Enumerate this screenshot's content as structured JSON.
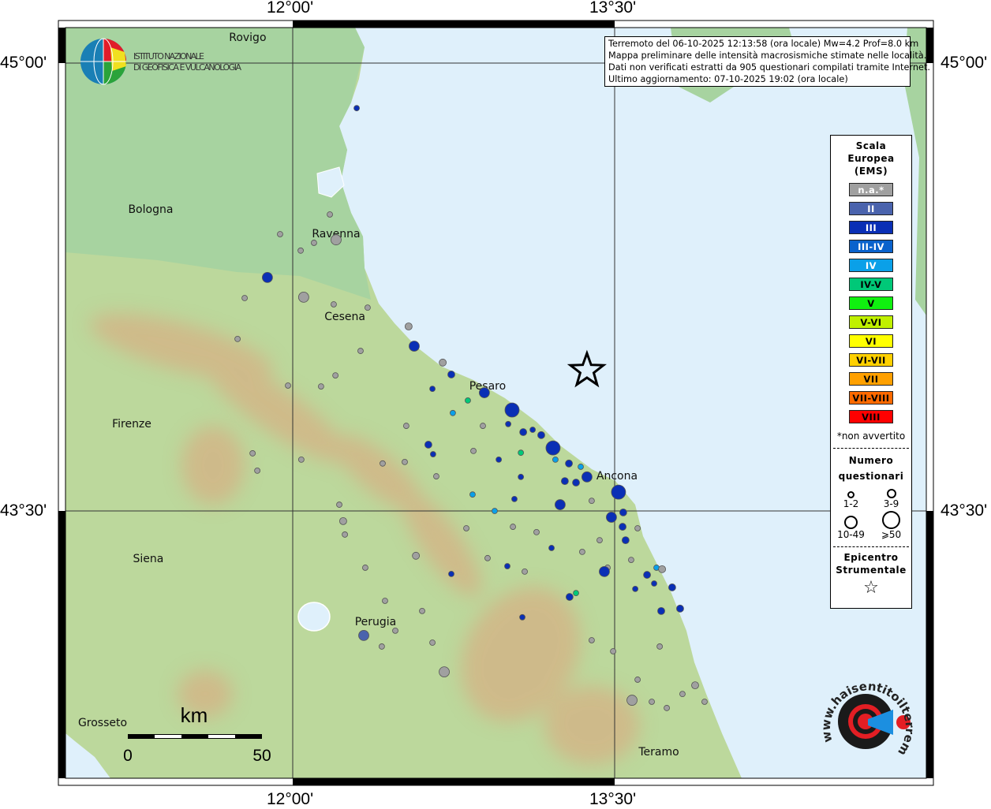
{
  "axes": {
    "lon_labels": [
      "12°00'",
      "13°30'"
    ],
    "lat_labels": [
      "45°00'",
      "43°30'"
    ],
    "lon_values": [
      12.0,
      13.5
    ],
    "lat_values": [
      45.0,
      43.5
    ]
  },
  "logo_ingv": {
    "line1": "ISTITUTO NAZIONALE",
    "line2": "DI GEOFISICA E VULCANOLOGIA"
  },
  "logo_hsit": {
    "text": "www.haisentitoilterremoto.it"
  },
  "info": {
    "line1": "Terremoto del 06-10-2025 12:13:58 (ora locale) Mw=4.2 Prof=8.0 km",
    "line2": "Mappa preliminare delle intensità macrosismiche stimate nelle località.",
    "line3": "Dati non verificati estratti da 905 questionari compilati tramite Internet.",
    "line4": "Ultimo aggiornamento: 07-10-2025 19:02 (ora locale)"
  },
  "legend": {
    "title1": "Scala",
    "title2": "Europea",
    "title3": "(EMS)",
    "classes": [
      {
        "label": "n.a.*",
        "color": "#a0a0a0",
        "text": "#ffffff"
      },
      {
        "label": "II",
        "color": "#4a63ad",
        "text": "#ffffff"
      },
      {
        "label": "III",
        "color": "#0a2fb5",
        "text": "#ffffff"
      },
      {
        "label": "III-IV",
        "color": "#0a62cc",
        "text": "#ffffff"
      },
      {
        "label": "IV",
        "color": "#0aa0e8",
        "text": "#ffffff"
      },
      {
        "label": "IV-V",
        "color": "#00c878",
        "text": "#000000"
      },
      {
        "label": "V",
        "color": "#10f010",
        "text": "#000000"
      },
      {
        "label": "V-VI",
        "color": "#c0f000",
        "text": "#000000"
      },
      {
        "label": "VI",
        "color": "#ffff00",
        "text": "#000000"
      },
      {
        "label": "VI-VII",
        "color": "#ffd000",
        "text": "#000000"
      },
      {
        "label": "VII",
        "color": "#ffa000",
        "text": "#000000"
      },
      {
        "label": "VII-VIII",
        "color": "#ff6a00",
        "text": "#000000"
      },
      {
        "label": "VIII",
        "color": "#ff0000",
        "text": "#000000"
      }
    ],
    "note": "*non avvertito",
    "count_title1": "Numero",
    "count_title2": "questionari",
    "size_labels": [
      "1-2",
      "3-9",
      "10-49",
      "⩾50"
    ],
    "epi_title1": "Epicentro",
    "epi_title2": "Strumentale"
  },
  "scalebar": {
    "unit": "km",
    "min": "0",
    "max": "50"
  },
  "epicenter": {
    "lon": 13.371,
    "lat": 43.97
  },
  "cities": [
    {
      "name": "Rovigo",
      "lon": 11.79,
      "lat": 45.085
    },
    {
      "name": "Bologna",
      "lon": 11.338,
      "lat": 44.509
    },
    {
      "name": "Ravenna",
      "lon": 12.202,
      "lat": 44.427
    },
    {
      "name": "Cesena",
      "lon": 12.243,
      "lat": 44.15
    },
    {
      "name": "Pesaro",
      "lon": 12.908,
      "lat": 43.917
    },
    {
      "name": "Ancona",
      "lon": 13.511,
      "lat": 43.616
    },
    {
      "name": "Firenze",
      "lon": 11.25,
      "lat": 43.791
    },
    {
      "name": "Siena",
      "lon": 11.327,
      "lat": 43.339
    },
    {
      "name": "Perugia",
      "lon": 12.386,
      "lat": 43.128
    },
    {
      "name": "Grosseto",
      "lon": 11.114,
      "lat": 42.79
    },
    {
      "name": "Teramo",
      "lon": 13.706,
      "lat": 42.692
    }
  ],
  "localities": [
    [
      13.022,
      43.838,
      "III",
      4
    ],
    [
      13.213,
      43.711,
      "III",
      4
    ],
    [
      13.518,
      43.563,
      "III",
      4
    ],
    [
      12.893,
      43.896,
      "III",
      3
    ],
    [
      11.882,
      44.282,
      "III",
      3
    ],
    [
      12.566,
      44.052,
      "III",
      3
    ],
    [
      13.452,
      43.297,
      "III",
      3
    ],
    [
      13.246,
      43.521,
      "III",
      3
    ],
    [
      13.485,
      43.479,
      "III",
      3
    ],
    [
      13.371,
      43.614,
      "III",
      3
    ],
    [
      12.331,
      43.083,
      "II",
      3
    ],
    [
      12.739,
      43.957,
      "III",
      2
    ],
    [
      12.651,
      43.909,
      "III",
      1
    ],
    [
      13.074,
      43.764,
      "III",
      2
    ],
    [
      13.158,
      43.754,
      "III",
      2
    ],
    [
      13.287,
      43.659,
      "III",
      2
    ],
    [
      13.32,
      43.595,
      "III",
      2
    ],
    [
      13.268,
      43.6,
      "III",
      2
    ],
    [
      13.54,
      43.495,
      "III",
      2
    ],
    [
      13.551,
      43.402,
      "III",
      2
    ],
    [
      13.537,
      43.447,
      "III",
      2
    ],
    [
      13.651,
      43.286,
      "III",
      2
    ],
    [
      13.768,
      43.244,
      "III",
      2
    ],
    [
      13.805,
      43.173,
      "III",
      2
    ],
    [
      13.717,
      43.165,
      "III",
      2
    ],
    [
      13.29,
      43.212,
      "III",
      2
    ],
    [
      12.632,
      43.722,
      "III",
      2
    ],
    [
      12.654,
      43.69,
      "III",
      1
    ],
    [
      12.96,
      43.672,
      "III",
      1
    ],
    [
      13.004,
      43.791,
      "III",
      1
    ],
    [
      13.118,
      43.772,
      "III",
      1
    ],
    [
      13.063,
      43.614,
      "III",
      1
    ],
    [
      13.033,
      43.54,
      "III",
      1
    ],
    [
      13.206,
      43.376,
      "III",
      1
    ],
    [
      13.684,
      43.257,
      "III",
      1
    ],
    [
      13.596,
      43.239,
      "III",
      1
    ],
    [
      12.838,
      43.555,
      "IV",
      1
    ],
    [
      12.941,
      43.5,
      "IV",
      1
    ],
    [
      12.746,
      43.828,
      "IV",
      1
    ],
    [
      12.816,
      43.87,
      "IV-V",
      1
    ],
    [
      13.063,
      43.695,
      "IV-V",
      1
    ],
    [
      13.224,
      43.672,
      "IV",
      1
    ],
    [
      13.342,
      43.648,
      "IV",
      1
    ],
    [
      13.0,
      43.315,
      "III",
      1
    ],
    [
      13.07,
      43.144,
      "III",
      1
    ],
    [
      12.739,
      43.289,
      "III",
      1
    ],
    [
      13.32,
      43.225,
      "IV-V",
      1
    ],
    [
      13.695,
      43.31,
      "IV",
      1
    ],
    [
      12.298,
      44.849,
      "III",
      1
    ],
    [
      12.202,
      44.408,
      "n.a.*",
      3
    ],
    [
      12.051,
      44.216,
      "n.a.*",
      3
    ],
    [
      12.54,
      44.118,
      "n.a.*",
      2
    ],
    [
      12.699,
      43.997,
      "n.a.*",
      2
    ],
    [
      12.235,
      43.466,
      "n.a.*",
      2
    ],
    [
      12.574,
      43.35,
      "n.a.*",
      2
    ],
    [
      12.706,
      42.961,
      "n.a.*",
      3
    ],
    [
      13.581,
      42.866,
      "n.a.*",
      3
    ],
    [
      13.875,
      42.916,
      "n.a.*",
      2
    ],
    [
      13.721,
      43.305,
      "n.a.*",
      2
    ],
    [
      12.173,
      44.493,
      "n.a.*",
      1
    ],
    [
      11.941,
      44.427,
      "n.a.*",
      1
    ],
    [
      12.037,
      44.372,
      "n.a.*",
      1
    ],
    [
      12.099,
      44.398,
      "n.a.*",
      1
    ],
    [
      11.776,
      44.213,
      "n.a.*",
      1
    ],
    [
      11.743,
      44.076,
      "n.a.*",
      1
    ],
    [
      11.978,
      43.92,
      "n.a.*",
      1
    ],
    [
      11.813,
      43.693,
      "n.a.*",
      1
    ],
    [
      11.835,
      43.635,
      "n.a.*",
      1
    ],
    [
      12.04,
      43.672,
      "n.a.*",
      1
    ],
    [
      12.199,
      43.954,
      "n.a.*",
      1
    ],
    [
      12.132,
      43.917,
      "n.a.*",
      1
    ],
    [
      12.316,
      44.036,
      "n.a.*",
      1
    ],
    [
      12.191,
      44.192,
      "n.a.*",
      1
    ],
    [
      12.349,
      44.181,
      "n.a.*",
      1
    ],
    [
      12.529,
      43.785,
      "n.a.*",
      1
    ],
    [
      12.419,
      43.659,
      "n.a.*",
      1
    ],
    [
      12.217,
      43.521,
      "n.a.*",
      1
    ],
    [
      12.243,
      43.421,
      "n.a.*",
      1
    ],
    [
      12.338,
      43.31,
      "n.a.*",
      1
    ],
    [
      12.43,
      43.199,
      "n.a.*",
      1
    ],
    [
      12.478,
      43.099,
      "n.a.*",
      1
    ],
    [
      12.415,
      43.046,
      "n.a.*",
      1
    ],
    [
      12.603,
      43.165,
      "n.a.*",
      1
    ],
    [
      12.651,
      43.059,
      "n.a.*",
      1
    ],
    [
      12.809,
      43.442,
      "n.a.*",
      1
    ],
    [
      12.908,
      43.342,
      "n.a.*",
      1
    ],
    [
      13.026,
      43.447,
      "n.a.*",
      1
    ],
    [
      13.136,
      43.429,
      "n.a.*",
      1
    ],
    [
      13.349,
      43.363,
      "n.a.*",
      1
    ],
    [
      13.43,
      43.402,
      "n.a.*",
      1
    ],
    [
      13.467,
      43.31,
      "n.a.*",
      1
    ],
    [
      13.577,
      43.336,
      "n.a.*",
      1
    ],
    [
      13.607,
      43.442,
      "n.a.*",
      1
    ],
    [
      13.71,
      43.046,
      "n.a.*",
      1
    ],
    [
      13.607,
      42.935,
      "n.a.*",
      1
    ],
    [
      13.673,
      42.861,
      "n.a.*",
      1
    ],
    [
      13.816,
      42.887,
      "n.a.*",
      1
    ],
    [
      13.919,
      42.861,
      "n.a.*",
      1
    ],
    [
      13.743,
      42.84,
      "n.a.*",
      1
    ],
    [
      13.493,
      43.03,
      "n.a.*",
      1
    ],
    [
      13.393,
      43.067,
      "n.a.*",
      1
    ],
    [
      12.842,
      43.701,
      "n.a.*",
      1
    ],
    [
      12.669,
      43.616,
      "n.a.*",
      1
    ],
    [
      12.522,
      43.664,
      "n.a.*",
      1
    ],
    [
      12.886,
      43.785,
      "n.a.*",
      1
    ],
    [
      13.393,
      43.534,
      "n.a.*",
      1
    ],
    [
      13.081,
      43.297,
      "n.a.*",
      1
    ]
  ]
}
